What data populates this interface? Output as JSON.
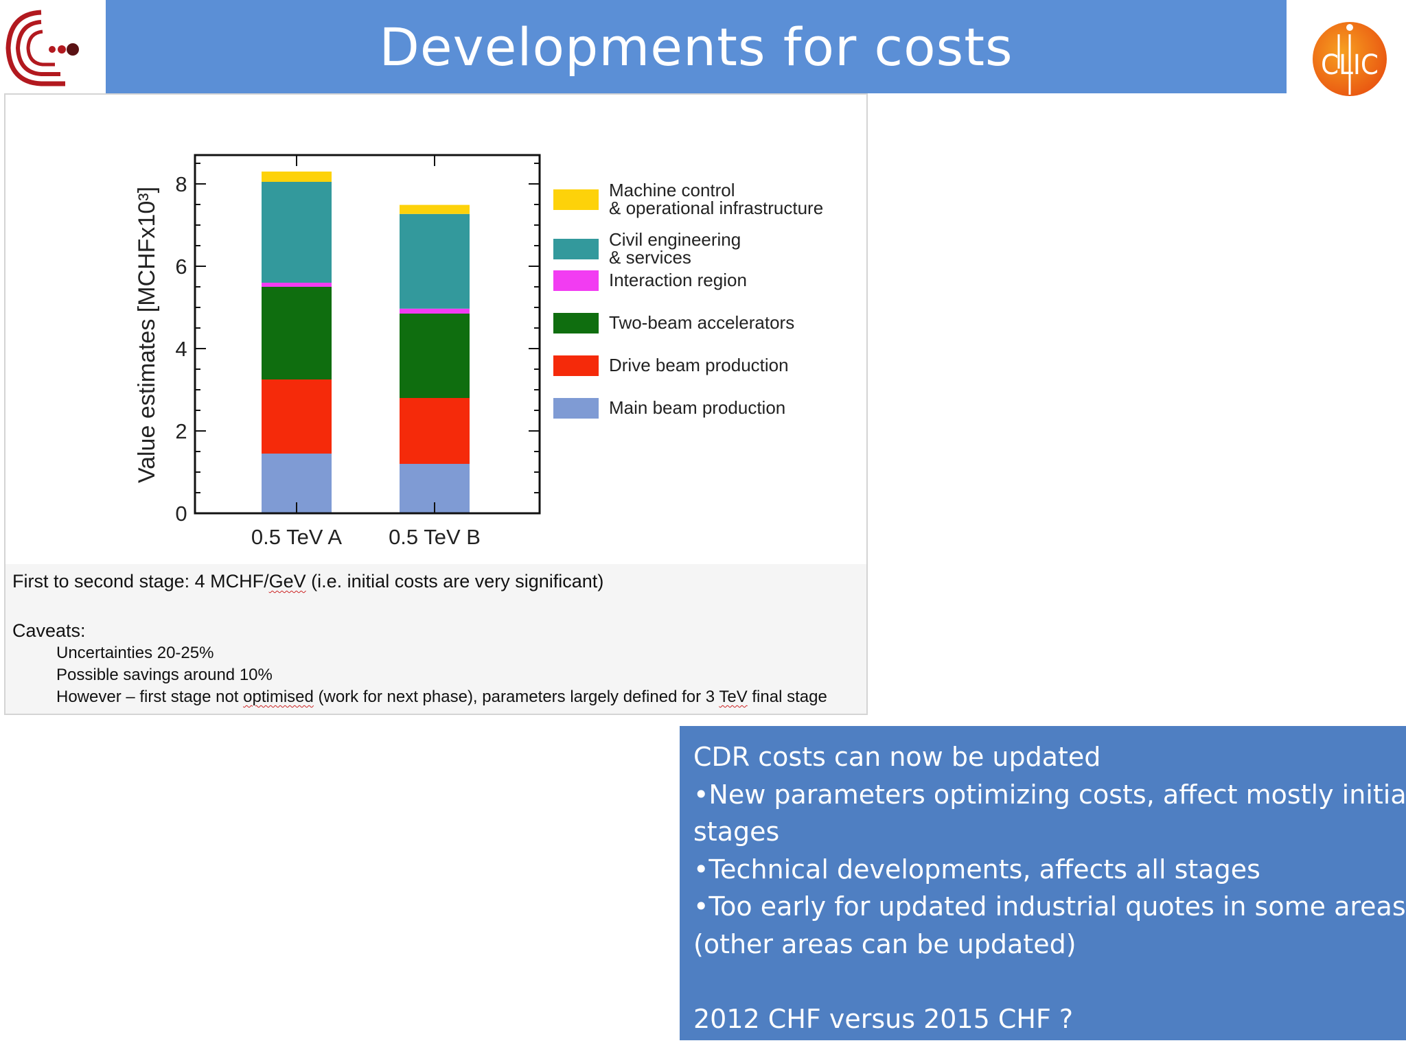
{
  "slide": {
    "title": "Developments for costs"
  },
  "logos": {
    "left": "ilc-logo",
    "right": "clic-logo",
    "right_text": "CLIC"
  },
  "caption": {
    "main_prefix": "First to second stage: 4 MCHF/",
    "main_unit": "GeV",
    "main_suffix": " (i.e. initial costs are very significant)",
    "caveats_label": "Caveats:",
    "caveat_1": "Uncertainties 20-25%",
    "caveat_2": "Possible savings around 10%",
    "caveat_3_a": "However – first stage not ",
    "caveat_3_b": "optimised",
    "caveat_3_c": " (work for next phase), parameters largely defined for 3 ",
    "caveat_3_d": "TeV",
    "caveat_3_e": " final stage"
  },
  "info_box": {
    "lines": [
      "CDR costs can now be updated",
      "•New parameters optimizing costs, affect mostly initial",
      "stages",
      "•Technical developments, affects all stages",
      "•Too early for updated industrial quotes in some areas",
      "(other areas can be updated)",
      "",
      "2012 CHF versus 2015 CHF ?"
    ]
  },
  "chart_data": {
    "type": "bar",
    "stacked": true,
    "title": "",
    "xlabel": "",
    "ylabel": "Value estimates [MCHFx10³]",
    "ylim": [
      0,
      8.7
    ],
    "yticks": [
      0,
      2,
      4,
      6,
      8
    ],
    "categories": [
      "0.5 TeV A",
      "0.5 TeV B"
    ],
    "legend_position": "right",
    "series": [
      {
        "name": "Main beam production",
        "color": "#7f9bd4",
        "values": [
          1.45,
          1.2
        ]
      },
      {
        "name": "Drive beam production",
        "color": "#f52a0a",
        "values": [
          1.8,
          1.6
        ]
      },
      {
        "name": "Two-beam accelerators",
        "color": "#0f6e0f",
        "values": [
          2.25,
          2.05
        ]
      },
      {
        "name": "Interaction region",
        "color": "#f23cf2",
        "values": [
          0.1,
          0.12
        ]
      },
      {
        "name": "Civil engineering & services",
        "color": "#33999c",
        "values": [
          2.45,
          2.3
        ]
      },
      {
        "name": "Machine control & operational infrastructure",
        "color": "#fdd20a",
        "values": [
          0.25,
          0.22
        ]
      }
    ],
    "legend_lines": [
      [
        "Machine control",
        "& operational infrastructure"
      ],
      [
        "Civil engineering",
        "& services"
      ],
      [
        "Interaction region"
      ],
      [
        "Two-beam accelerators"
      ],
      [
        "Drive beam production"
      ],
      [
        "Main beam production"
      ]
    ]
  }
}
